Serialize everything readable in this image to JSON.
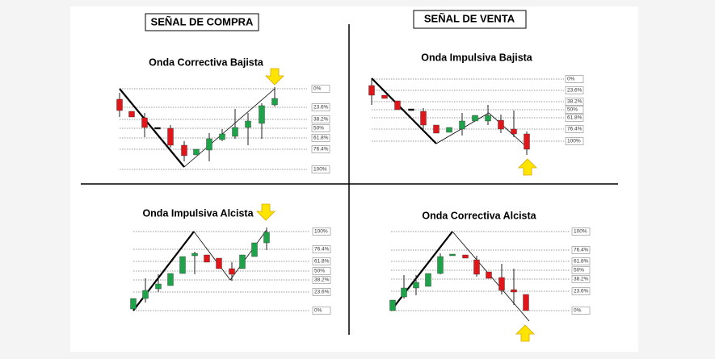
{
  "headers": [
    "SEÑAL DE COMPRA",
    "SEÑAL DE VENTA"
  ],
  "panels": [
    {
      "title": "Onda Correctiva Bajista",
      "levels": [
        "0%",
        "23.6%",
        "38.2%",
        "50%",
        "61.8%",
        "76.4%",
        "100%"
      ]
    },
    {
      "title": "Onda Impulsiva Bajista",
      "levels": [
        "0%",
        "23.6%",
        "38.2%",
        "50%",
        "61.8%",
        "76.4%",
        "100%"
      ]
    },
    {
      "title": "Onda Impulsiva Alcista",
      "levels": [
        "100%",
        "76.4%",
        "61.8%",
        "50%",
        "38.2%",
        "23.6%",
        "0%"
      ]
    },
    {
      "title": "Onda Correctiva Alcista",
      "levels": [
        "100%",
        "76.4%",
        "61.8%",
        "50%",
        "38.2%",
        "23.6%",
        "0%"
      ]
    }
  ]
}
